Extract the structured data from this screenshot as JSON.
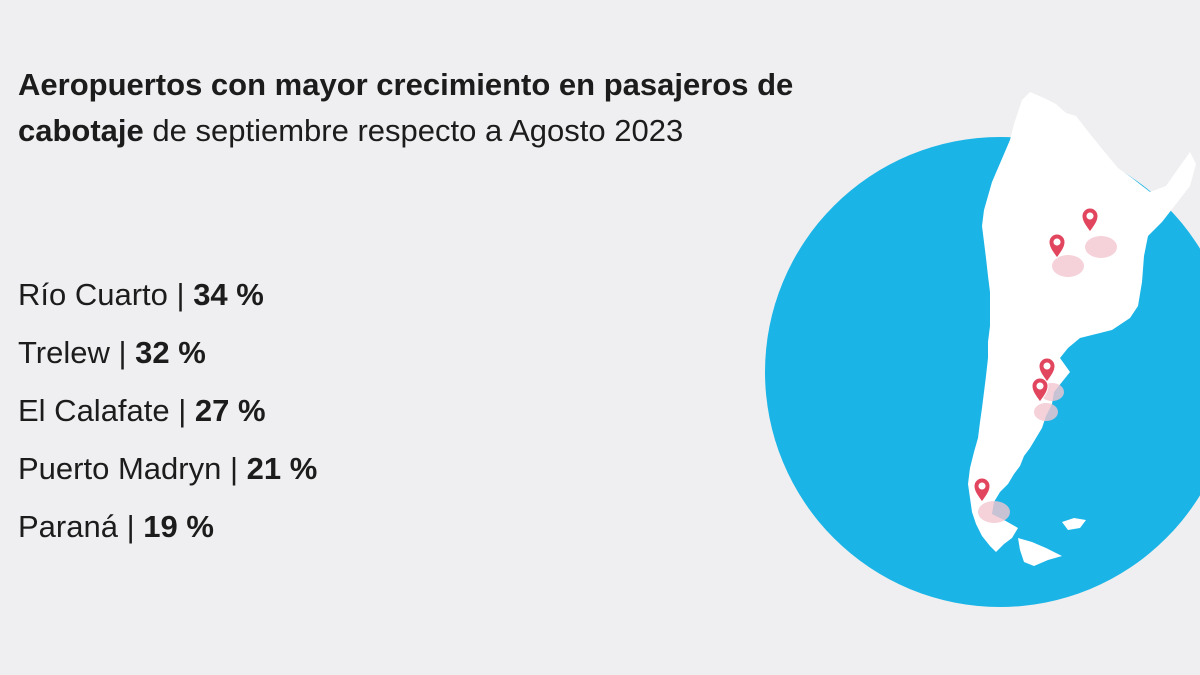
{
  "title": {
    "bold": "Aeropuertos con mayor crecimiento en pasajeros de cabotaje",
    "regular": " de septiembre respecto a Agosto 2023"
  },
  "airports": [
    {
      "name": "Río Cuarto",
      "separator": " | ",
      "value": "34 %"
    },
    {
      "name": "Trelew",
      "separator": " | ",
      "value": "32 %"
    },
    {
      "name": "El Calafate",
      "separator": " | ",
      "value": "27 %"
    },
    {
      "name": "Puerto Madryn",
      "separator": " | ",
      "value": "21 %"
    },
    {
      "name": "Paraná",
      "separator": " | ",
      "value": "19 %"
    }
  ],
  "map": {
    "circle_color": "#1bb4e6",
    "land_color": "#ffffff",
    "marker_color": "#e2465e",
    "marker_icon": "map-pin-icon"
  }
}
